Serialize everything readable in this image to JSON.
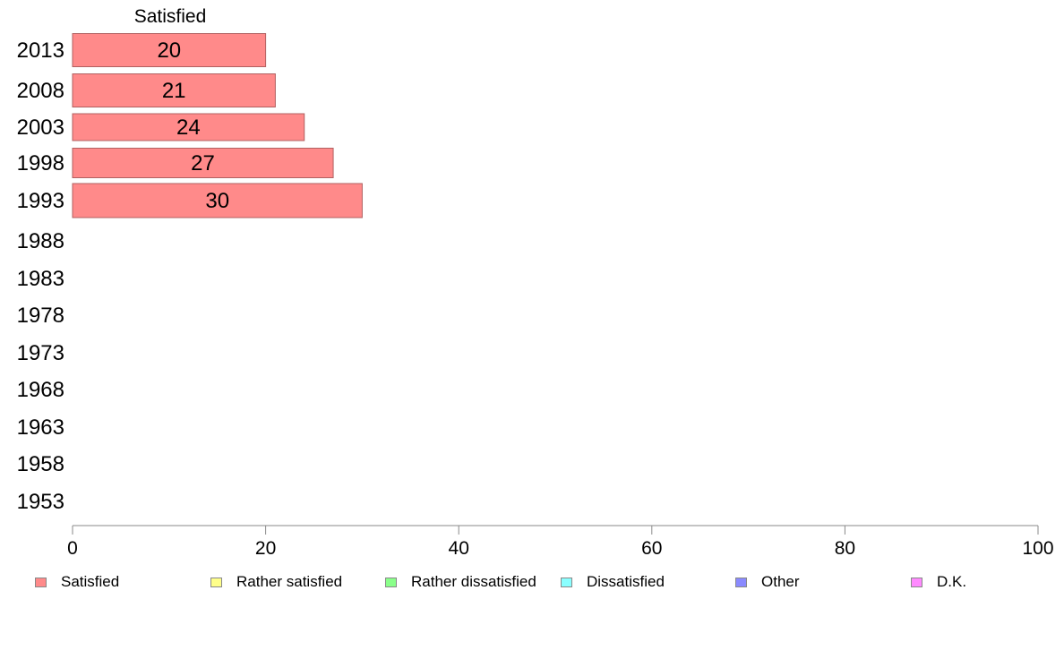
{
  "chart_data": {
    "type": "bar",
    "orientation": "horizontal",
    "title": "Satisfied",
    "categories": [
      "2013",
      "2008",
      "2003",
      "1998",
      "1993",
      "1988",
      "1983",
      "1978",
      "1973",
      "1968",
      "1963",
      "1958",
      "1953"
    ],
    "series": [
      {
        "name": "Satisfied",
        "values": [
          20,
          21,
          24,
          27,
          30,
          null,
          null,
          null,
          null,
          null,
          null,
          null,
          null
        ]
      }
    ],
    "data_labels": [
      "20",
      "21",
      "24",
      "27",
      "30"
    ],
    "xlim": [
      0,
      100
    ],
    "x_ticks": [
      "0",
      "20",
      "40",
      "60",
      "80",
      "100"
    ],
    "grid": false,
    "legend_position": "bottom",
    "legend": [
      {
        "label": "Satisfied",
        "color": "#ff8a8a"
      },
      {
        "label": "Rather satisfied",
        "color": "#ffff8a"
      },
      {
        "label": "Rather dissatisfied",
        "color": "#8aff8a"
      },
      {
        "label": "Dissatisfied",
        "color": "#8affff"
      },
      {
        "label": "Other",
        "color": "#8a8aff"
      },
      {
        "label": "D.K.",
        "color": "#ff8aff"
      }
    ],
    "bar_color": "#ff8a8a",
    "bar_edge_color": "#b06060"
  }
}
